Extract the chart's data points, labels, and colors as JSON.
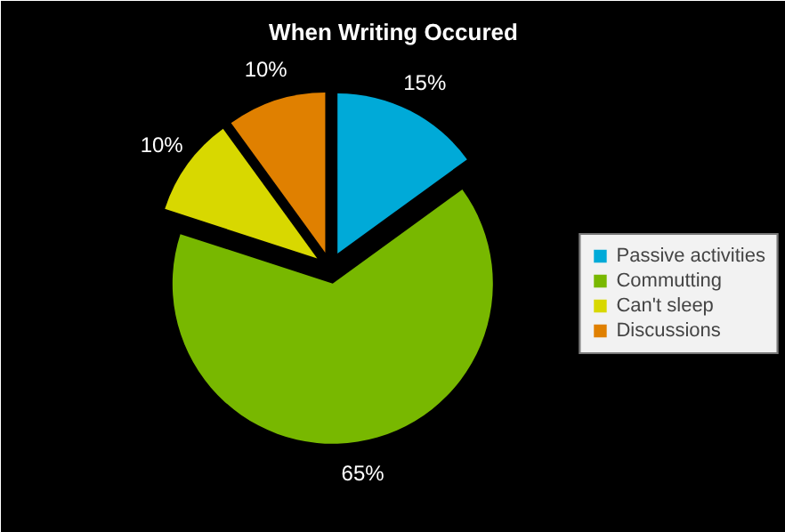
{
  "chart_data": {
    "type": "pie",
    "title": "When Writing Occured",
    "categories": [
      "Passive activities",
      "Commutting",
      "Can't sleep",
      "Discussions"
    ],
    "values": [
      15,
      65,
      10,
      10
    ],
    "colors": [
      "#00aad8",
      "#78b800",
      "#d8d800",
      "#e08000"
    ],
    "value_labels": [
      "15%",
      "65%",
      "10%",
      "10%"
    ],
    "legend": "right"
  }
}
